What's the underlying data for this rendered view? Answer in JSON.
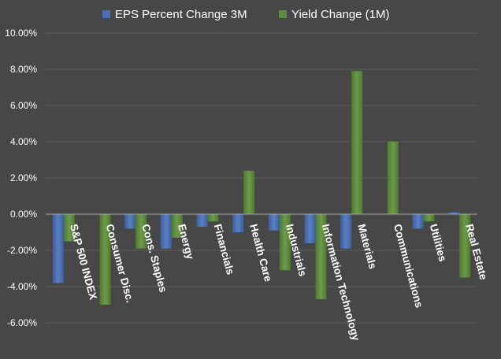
{
  "chart_data": {
    "type": "bar",
    "categories": [
      "S&P 500 INDEX",
      "Consumer Disc.",
      "Cons. Staples",
      "Energy",
      "Financials",
      "Health Care",
      "Industrials",
      "Information Technology",
      "Materials",
      "Communications",
      "Utilities",
      "Real Estate"
    ],
    "series": [
      {
        "name": "EPS Percent Change 3M",
        "color": "#4a6fb4",
        "values": [
          -3.8,
          0.0,
          -0.8,
          -1.9,
          -0.7,
          -1.0,
          -0.9,
          -1.6,
          -1.9,
          0.0,
          -0.8,
          0.1
        ]
      },
      {
        "name": "Yield Change (1M)",
        "color": "#5f8b3c",
        "values": [
          -1.5,
          -5.0,
          -1.9,
          -1.3,
          -0.4,
          2.4,
          -3.1,
          -4.7,
          7.9,
          4.0,
          -0.4,
          -3.5
        ]
      }
    ],
    "y_ticks": [
      "10.00%",
      "8.00%",
      "6.00%",
      "4.00%",
      "2.00%",
      "0.00%",
      "-2.00%",
      "-4.00%",
      "-6.00%"
    ],
    "ylim": [
      -6,
      10
    ],
    "grid": true,
    "legend_position": "top",
    "title": "",
    "xlabel": "",
    "ylabel": ""
  }
}
